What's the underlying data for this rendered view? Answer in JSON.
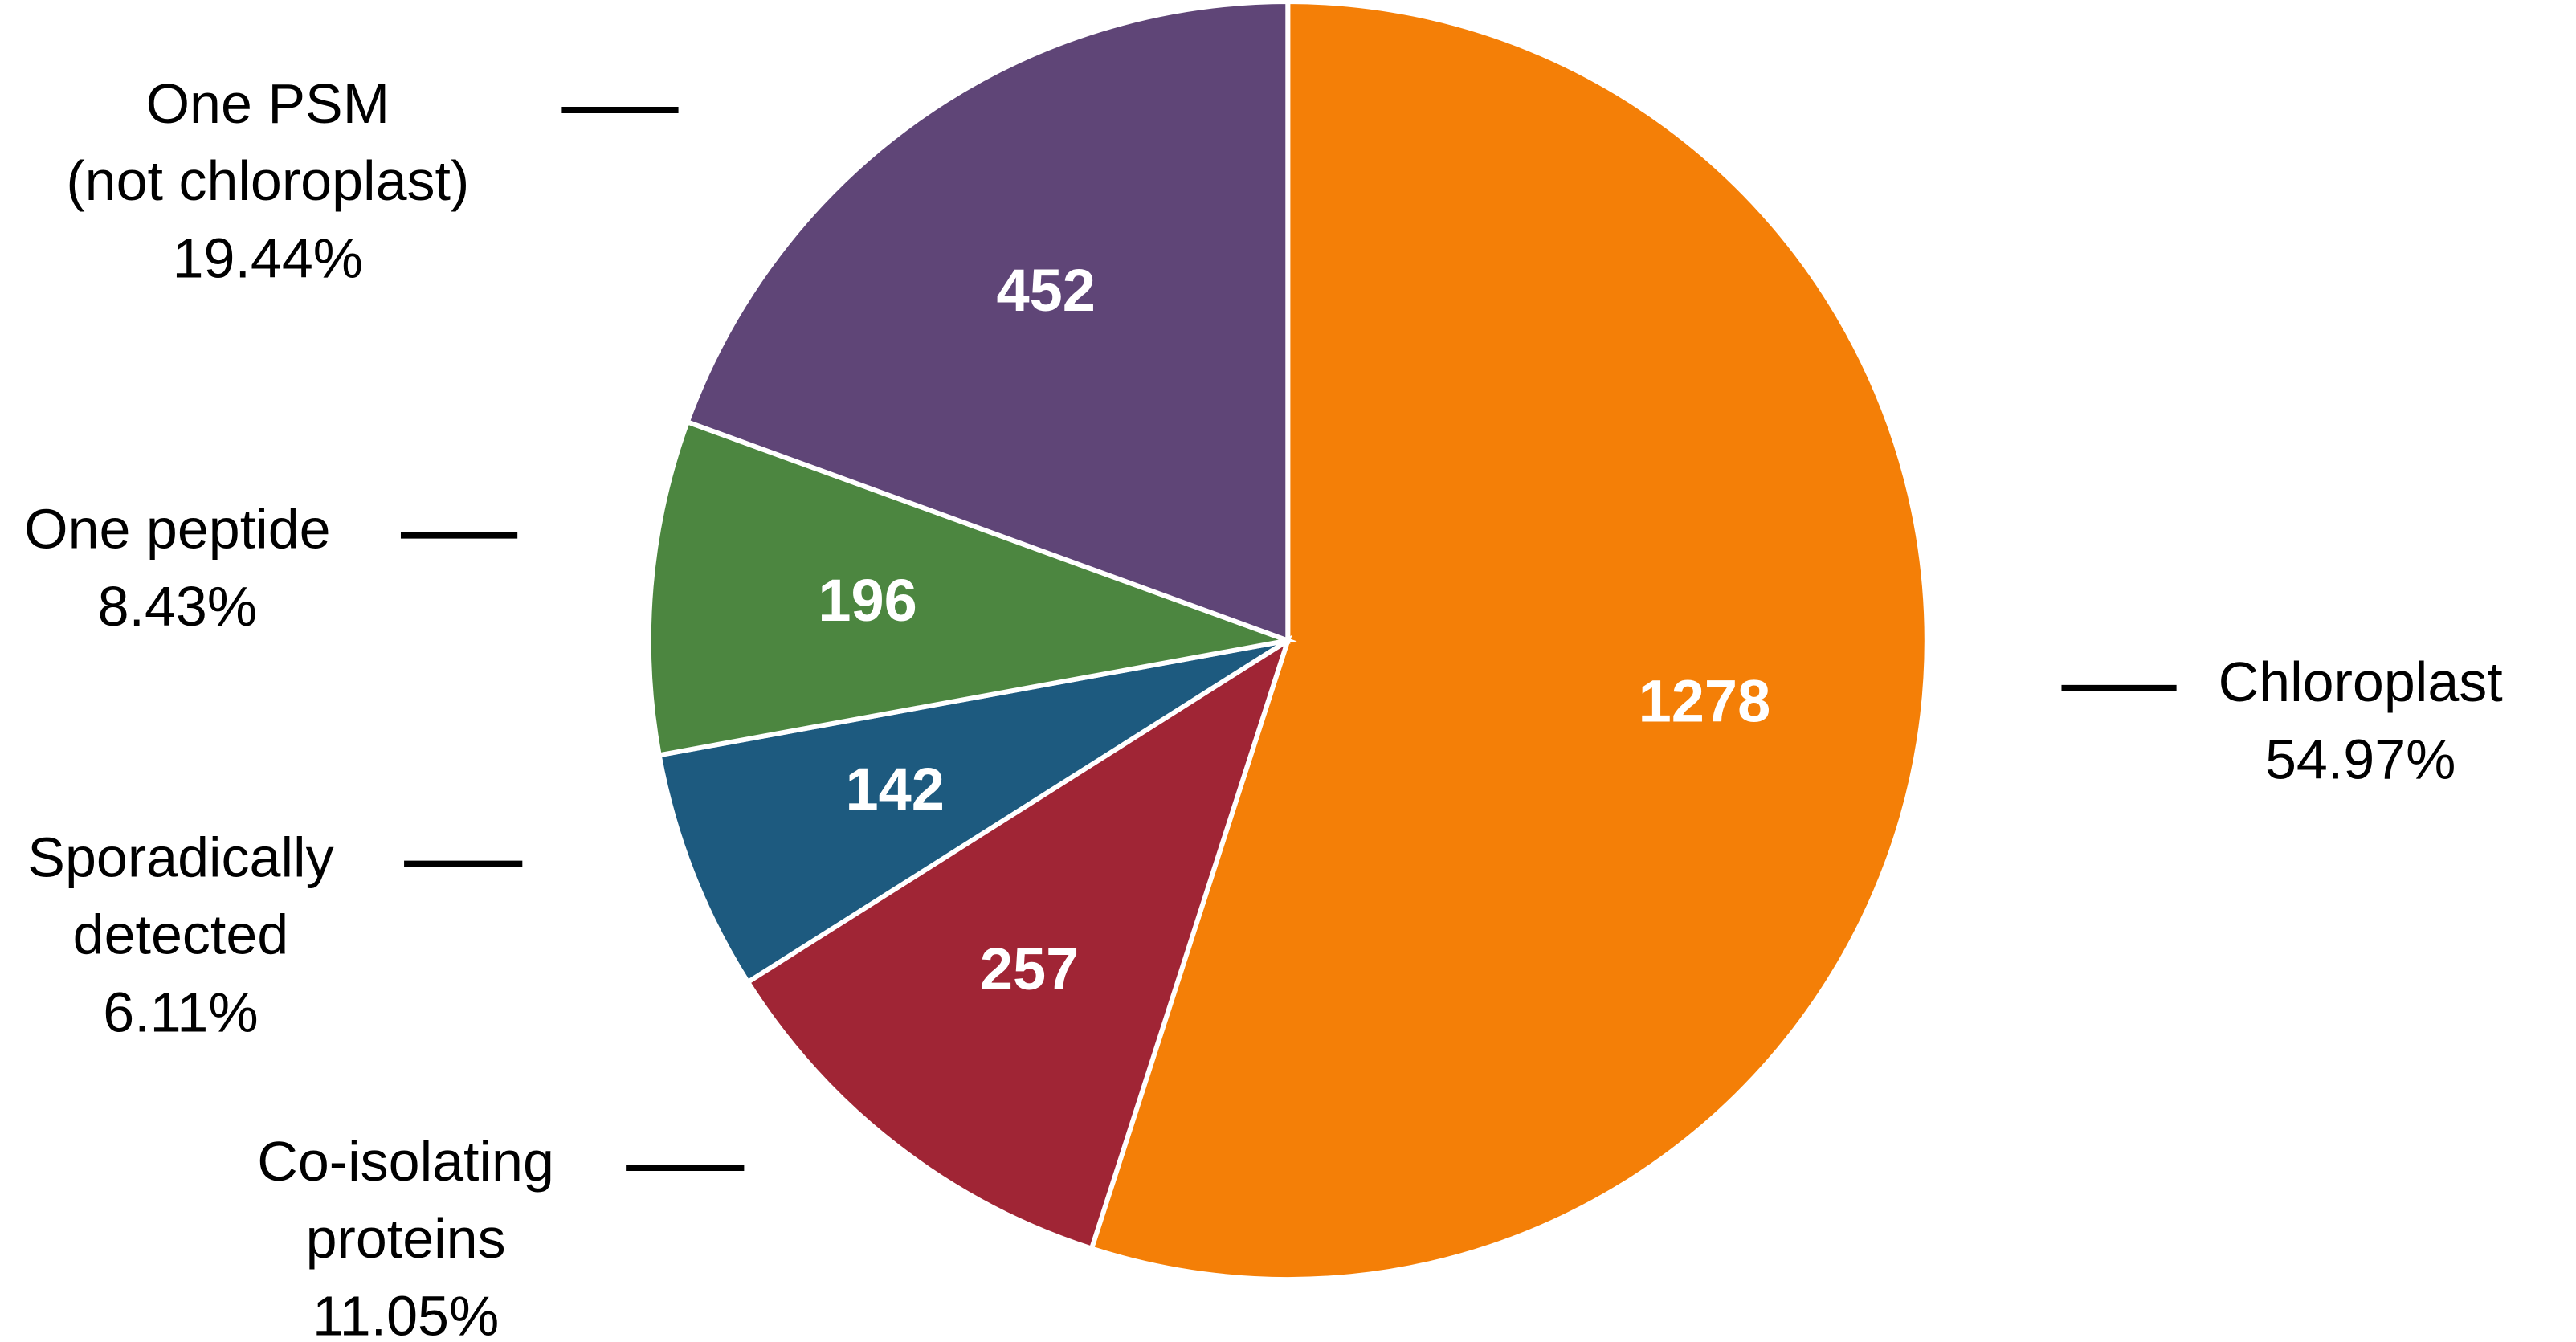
{
  "chart_data": {
    "type": "pie",
    "categories": [
      [
        "Chloroplast"
      ],
      [
        "Co-isolating",
        "proteins"
      ],
      [
        "Sporadically",
        "detected"
      ],
      [
        "One peptide"
      ],
      [
        "One PSM",
        "(not chloroplast)"
      ]
    ],
    "values": [
      1278,
      257,
      142,
      196,
      452
    ],
    "percent_labels": [
      "54.97%",
      "11.05%",
      "6.11%",
      "8.43%",
      "19.44%"
    ],
    "colors": [
      "#f47f07",
      "#a02535",
      "#1d5a7f",
      "#4c8640",
      "#5f4577"
    ]
  }
}
